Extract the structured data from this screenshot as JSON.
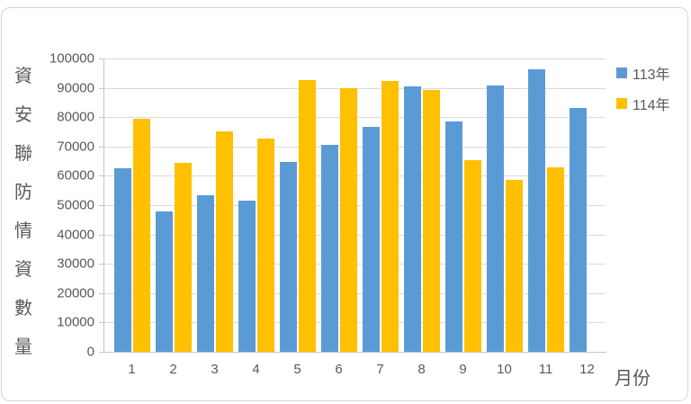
{
  "chart_data": {
    "type": "bar",
    "title": "",
    "x_axis_title": "月份",
    "y_axis_title": "資安聯防情資數量",
    "categories": [
      "1",
      "2",
      "3",
      "4",
      "5",
      "6",
      "7",
      "8",
      "9",
      "10",
      "11",
      "12"
    ],
    "series": [
      {
        "name": "113年",
        "color": "#5B9BD5",
        "values": [
          62500,
          48000,
          53500,
          51500,
          64800,
          70600,
          76800,
          90500,
          78600,
          90700,
          96200,
          83200
        ]
      },
      {
        "name": "114年",
        "color": "#FFC000",
        "values": [
          79500,
          64500,
          75200,
          72800,
          92600,
          89800,
          92200,
          89300,
          65200,
          58500,
          62800,
          null
        ]
      }
    ],
    "y_axis": {
      "min": 0,
      "max": 100000,
      "step": 10000,
      "tick_labels": [
        "0",
        "10000",
        "20000",
        "30000",
        "40000",
        "50000",
        "60000",
        "70000",
        "80000",
        "90000",
        "100000"
      ]
    },
    "legend_position": "right",
    "grid": true,
    "colors": {
      "gridline": "#dadada",
      "axis_line": "#c6c6c6",
      "text": "#595959"
    }
  }
}
